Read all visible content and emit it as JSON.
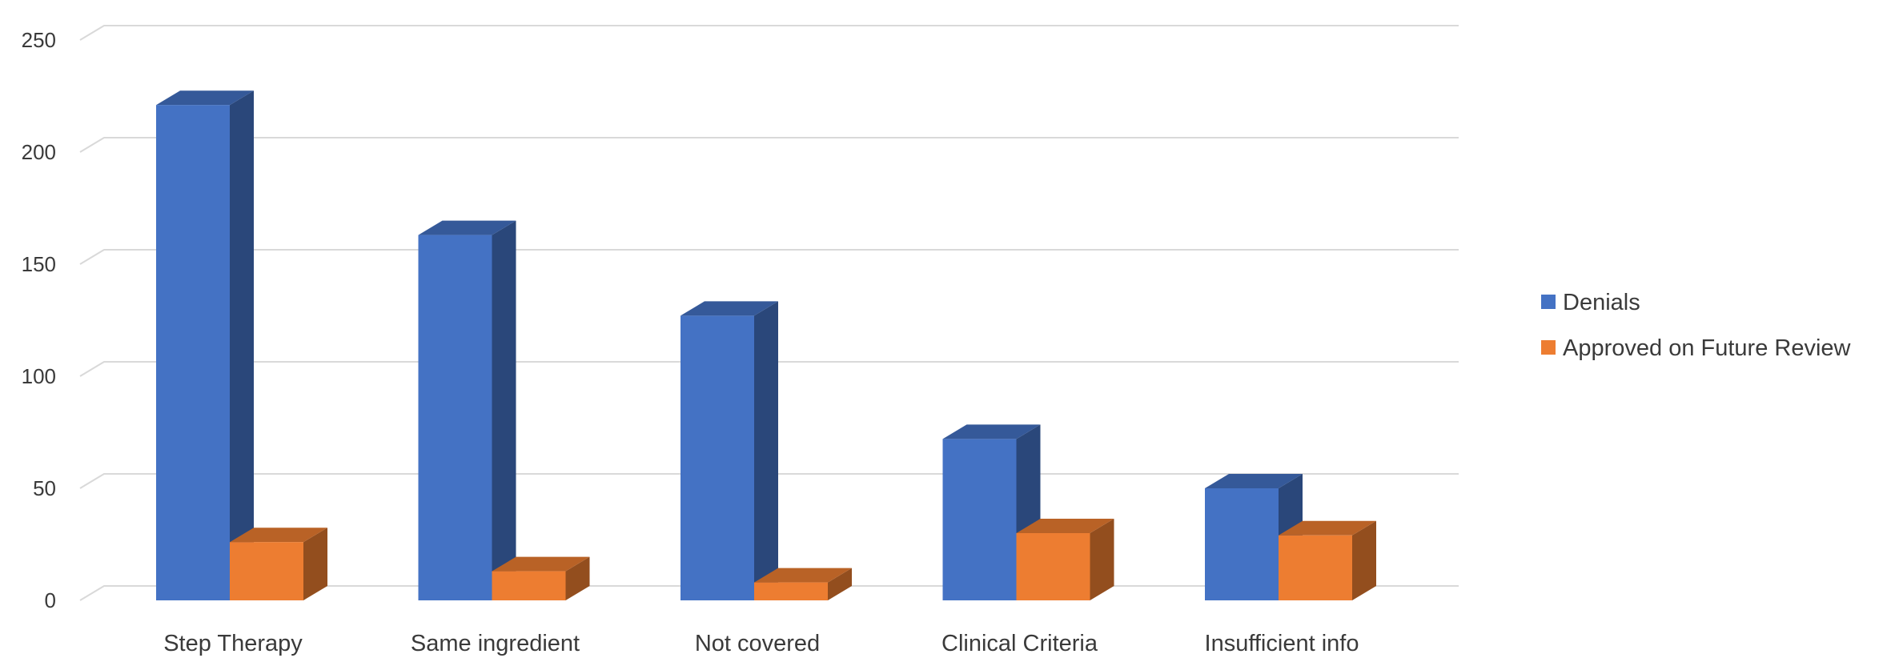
{
  "chart_data": {
    "type": "bar",
    "style": "3d-clustered-column",
    "categories": [
      "Step Therapy",
      "Same ingredient",
      "Not covered",
      "Clinical Criteria",
      "Insufficient info"
    ],
    "series": [
      {
        "name": "Denials",
        "values": [
          221,
          163,
          127,
          72,
          50
        ],
        "color": "#4472C4"
      },
      {
        "name": "Approved on Future Review",
        "values": [
          26,
          13,
          8,
          30,
          29
        ],
        "color": "#ED7D31"
      }
    ],
    "yticks": [
      0,
      50,
      100,
      150,
      200,
      250
    ],
    "ylim": [
      0,
      262
    ],
    "grid": true,
    "legend": "right"
  }
}
